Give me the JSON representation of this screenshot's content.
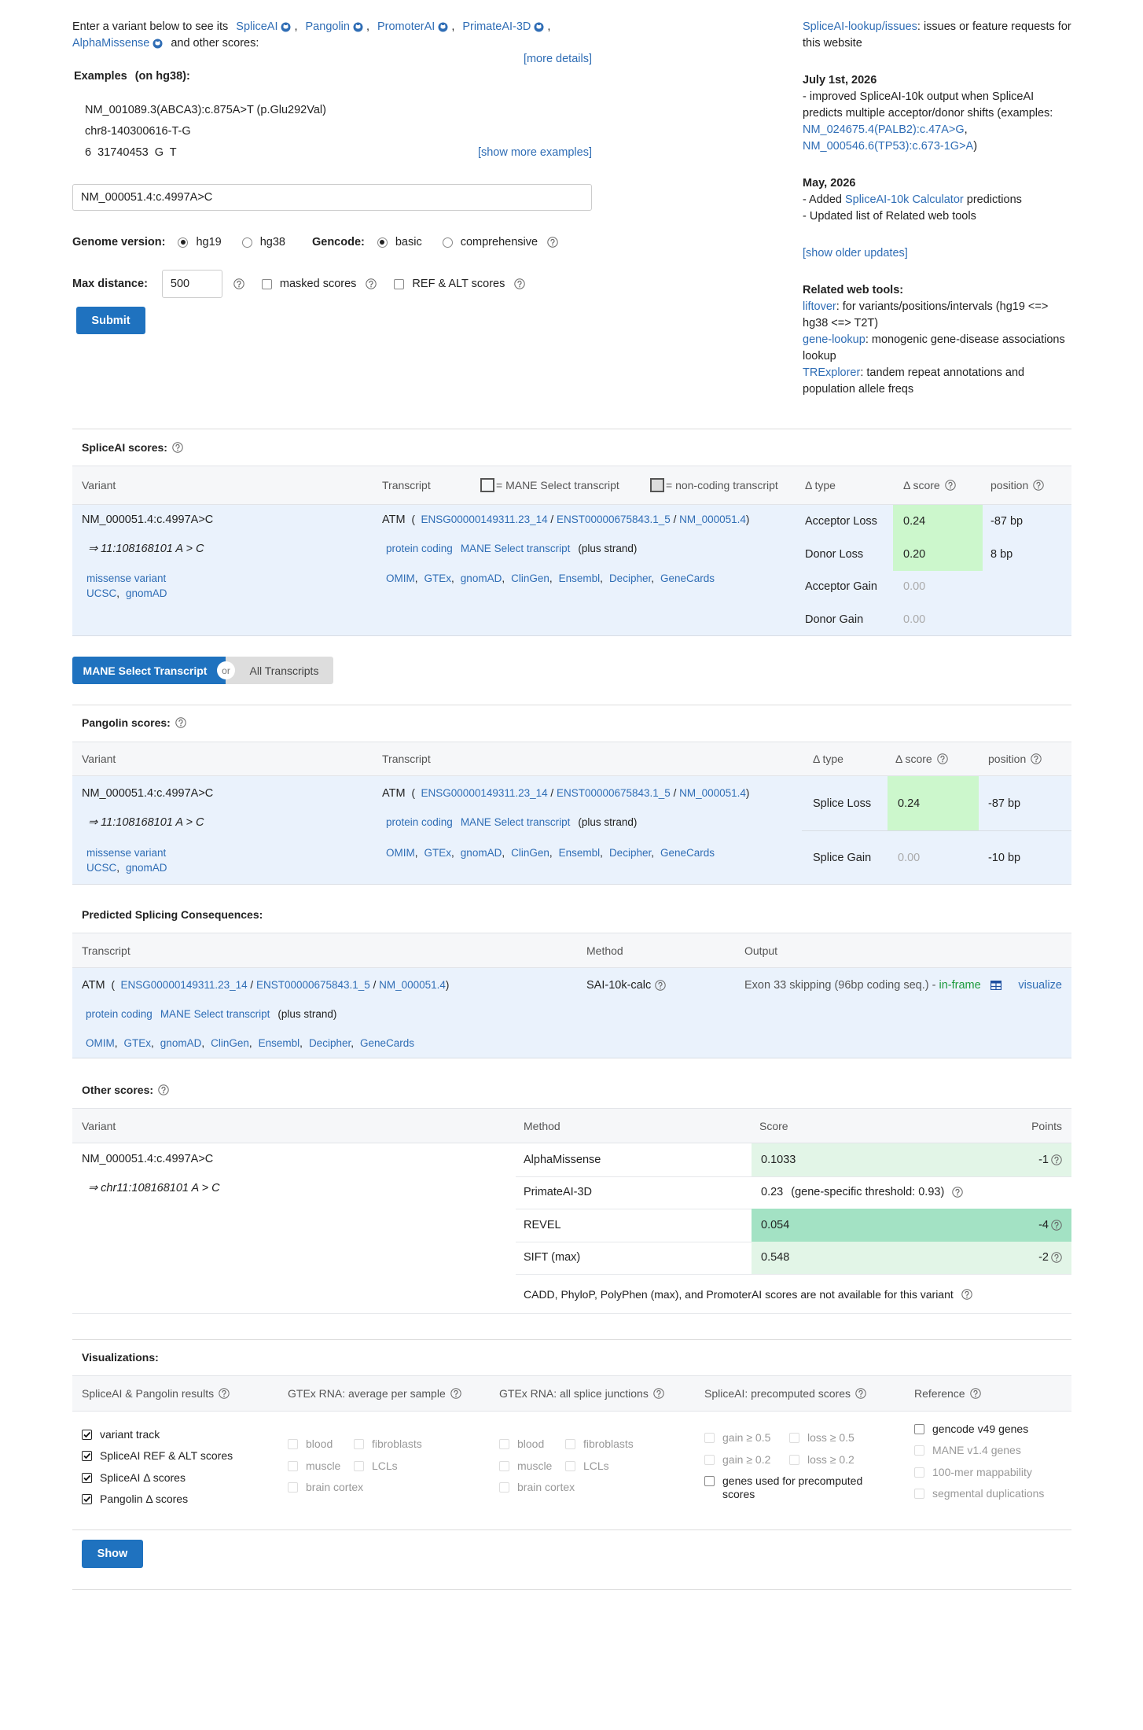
{
  "intro": {
    "lead": "Enter a variant below to see its",
    "tools": [
      "SpliceAI",
      "Pangolin",
      "PromoterAI",
      "PrimateAI-3D",
      "AlphaMissense"
    ],
    "sep": ",",
    "tail": "and other scores:",
    "more_details": "[more details]"
  },
  "examples": {
    "title": "Examples",
    "note": "(on hg38):",
    "items": [
      "NM_001089.3(ABCA3):c.875A>T (p.Glu292Val)",
      "chr8-140300616-T-G",
      "6  31740453  G  T"
    ],
    "show_more": "[show more examples]"
  },
  "form": {
    "variant": "NM_000051.4:c.4997A>C",
    "genome": {
      "label": "Genome version:",
      "options": [
        {
          "label": "hg19",
          "selected": true
        },
        {
          "label": "hg38",
          "selected": false
        }
      ]
    },
    "gencode": {
      "label": "Gencode:",
      "options": [
        {
          "label": "basic",
          "selected": true
        },
        {
          "label": "comprehensive",
          "selected": false
        }
      ]
    },
    "max_distance": {
      "label": "Max distance:",
      "value": "500"
    },
    "masked_scores": {
      "label": "masked scores",
      "checked": false
    },
    "ref_alt_scores": {
      "label": "REF & ALT scores",
      "checked": false
    },
    "submit": "Submit"
  },
  "sidebar": {
    "issues": [
      {
        "link": "SpliceAI-lookup/issues"
      },
      {
        "text": ": issues or feature requests for this website"
      }
    ],
    "updates": [
      {
        "date": "July 1st, 2026",
        "lines": [
          [
            {
              "text": "- improved SpliceAI-10k output when SpliceAI predicts multiple acceptor/donor shifts (examples: "
            },
            {
              "link": "NM_024675.4(PALB2):c.47A>G"
            },
            {
              "text": ", "
            },
            {
              "link": "NM_000546.6(TP53):c.673-1G>A"
            },
            {
              "text": ")"
            }
          ]
        ]
      },
      {
        "date": "May, 2026",
        "lines": [
          [
            {
              "text": "- Added "
            },
            {
              "link": "SpliceAI-10k Calculator"
            },
            {
              "text": " predictions"
            }
          ],
          [
            {
              "text": "- Updated list of Related web tools"
            }
          ]
        ]
      }
    ],
    "show_older": "[show older updates]",
    "related_title": "Related web tools:",
    "related": [
      [
        {
          "link": "liftover"
        },
        {
          "text": ": for variants/positions/intervals (hg19 <=> hg38 <=> T2T)"
        }
      ],
      [
        {
          "link": "gene-lookup"
        },
        {
          "text": ": monogenic gene-disease associations lookup"
        }
      ],
      [
        {
          "link": "TRExplorer"
        },
        {
          "text": ": tandem repeat annotations and population allele freqs"
        }
      ]
    ]
  },
  "spliceai": {
    "title": "SpliceAI scores:",
    "headers": {
      "variant": "Variant",
      "transcript": "Transcript",
      "mane_legend": "= MANE Select transcript",
      "noncoding_legend": "= non-coding transcript",
      "type": "Δ type",
      "score": "Δ score",
      "position": "position"
    },
    "variant": {
      "name": "NM_000051.4:c.4997A>C",
      "coords": "⇒ 11:108168101 A > C",
      "consequence": "missense variant",
      "links": [
        "UCSC",
        "gnomAD"
      ],
      "sep": ","
    },
    "transcript": {
      "gene": "ATM",
      "ids": [
        {
          "text": "(  "
        },
        {
          "link": "ENSG00000149311.23_14"
        },
        {
          "text": " / "
        },
        {
          "link": "ENST00000675843.1_5"
        },
        {
          "text": " / "
        },
        {
          "link": "NM_000051.4"
        },
        {
          "text": ")"
        }
      ],
      "tags": [
        "protein coding",
        "MANE Select transcript"
      ],
      "strand": "(plus strand)",
      "links": [
        "OMIM",
        "GTEx",
        "gnomAD",
        "ClinGen",
        "Ensembl",
        "Decipher",
        "GeneCards"
      ],
      "sep": ","
    },
    "rows": [
      {
        "type": "Acceptor Loss",
        "score": "0.24",
        "position": "-87 bp",
        "color": "#ccf7cc"
      },
      {
        "type": "Donor Loss",
        "score": "0.20",
        "position": "8 bp",
        "color": "#ccf7cc"
      },
      {
        "type": "Acceptor Gain",
        "score": "0.00"
      },
      {
        "type": "Donor Gain",
        "score": "0.00"
      }
    ]
  },
  "toggle": {
    "selected": "MANE Select Transcript",
    "or": "or",
    "other": "All Transcripts"
  },
  "pangolin": {
    "title": "Pangolin scores:",
    "headers": {
      "variant": "Variant",
      "transcript": "Transcript",
      "type": "Δ type",
      "score": "Δ score",
      "position": "position"
    },
    "variant": {
      "name": "NM_000051.4:c.4997A>C",
      "coords": "⇒ 11:108168101 A > C",
      "consequence": "missense variant",
      "links": [
        "UCSC",
        "gnomAD"
      ],
      "sep": ","
    },
    "transcript": {
      "gene": "ATM",
      "ids": [
        {
          "text": "(  "
        },
        {
          "link": "ENSG00000149311.23_14"
        },
        {
          "text": " / "
        },
        {
          "link": "ENST00000675843.1_5"
        },
        {
          "text": " / "
        },
        {
          "link": "NM_000051.4"
        },
        {
          "text": ")"
        }
      ],
      "tags": [
        "protein coding",
        "MANE Select transcript"
      ],
      "strand": "(plus strand)",
      "links": [
        "OMIM",
        "GTEx",
        "gnomAD",
        "ClinGen",
        "Ensembl",
        "Decipher",
        "GeneCards"
      ],
      "sep": ","
    },
    "rows": [
      {
        "type": "Splice Loss",
        "score": "0.24",
        "position": "-87 bp",
        "color": "#ccf7cc"
      },
      {
        "type": "Splice Gain",
        "score": "0.00",
        "position": "-10 bp"
      }
    ]
  },
  "consequences": {
    "title": "Predicted Splicing Consequences:",
    "headers": {
      "transcript": "Transcript",
      "method": "Method",
      "output": "Output"
    },
    "transcript": {
      "gene": "ATM",
      "ids": [
        {
          "text": "(  "
        },
        {
          "link": "ENSG00000149311.23_14"
        },
        {
          "text": " / "
        },
        {
          "link": "ENST00000675843.1_5"
        },
        {
          "text": " / "
        },
        {
          "link": "NM_000051.4"
        },
        {
          "text": ")"
        }
      ],
      "tags": [
        "protein coding",
        "MANE Select transcript"
      ],
      "strand": "(plus strand)",
      "links": [
        "OMIM",
        "GTEx",
        "gnomAD",
        "ClinGen",
        "Ensembl",
        "Decipher",
        "GeneCards"
      ],
      "sep": ","
    },
    "method": "SAI-10k-calc",
    "output": [
      {
        "text": "Exon 33 skipping (96bp coding seq.) - "
      },
      {
        "highlight": "in-frame"
      }
    ],
    "visualize": "visualize"
  },
  "other": {
    "title": "Other scores:",
    "headers": {
      "variant": "Variant",
      "method": "Method",
      "score": "Score",
      "points": "Points"
    },
    "variant": {
      "name": "NM_000051.4:c.4997A>C",
      "coords": "⇒ chr11:108168101 A > C"
    },
    "rows": [
      {
        "method": "AlphaMissense",
        "score": "0.1033",
        "points": "-1",
        "color": "#e2f5e7"
      },
      {
        "method": "PrimateAI-3D",
        "score": "0.23",
        "detail": "(gene-specific threshold: 0.93)"
      },
      {
        "method": "REVEL",
        "score": "0.054",
        "points": "-4",
        "color": "#a3e2c4"
      },
      {
        "method": "SIFT (max)",
        "score": "0.548",
        "points": "-2",
        "color": "#e2f5e7"
      }
    ],
    "note": "CADD, PhyloP, PolyPhen (max), and PromoterAI scores are not available for this variant"
  },
  "visualizations": {
    "title": "Visualizations:",
    "columns": [
      {
        "header": "SpliceAI & Pangolin results",
        "options": [
          {
            "label": "variant track",
            "checked": true,
            "disabled": false
          },
          {
            "label": "SpliceAI REF & ALT scores",
            "checked": true,
            "disabled": false
          },
          {
            "label": "SpliceAI Δ scores",
            "checked": true,
            "disabled": false
          },
          {
            "label": "Pangolin Δ scores",
            "checked": true,
            "disabled": false
          }
        ]
      },
      {
        "header": "GTEx RNA: average per sample",
        "options": [
          {
            "label": "blood",
            "checked": false,
            "disabled": true
          },
          {
            "label": "fibroblasts",
            "checked": false,
            "disabled": true
          },
          {
            "label": "muscle",
            "checked": false,
            "disabled": true
          },
          {
            "label": "LCLs",
            "checked": false,
            "disabled": true
          },
          {
            "label": "brain cortex",
            "checked": false,
            "disabled": true
          }
        ]
      },
      {
        "header": "GTEx RNA: all splice junctions",
        "options": [
          {
            "label": "blood",
            "checked": false,
            "disabled": true
          },
          {
            "label": "fibroblasts",
            "checked": false,
            "disabled": true
          },
          {
            "label": "muscle",
            "checked": false,
            "disabled": true
          },
          {
            "label": "LCLs",
            "checked": false,
            "disabled": true
          },
          {
            "label": "brain cortex",
            "checked": false,
            "disabled": true
          }
        ]
      },
      {
        "header": "SpliceAI: precomputed scores",
        "options": [
          {
            "label": "gain ≥ 0.5",
            "checked": false,
            "disabled": true
          },
          {
            "label": "loss ≥ 0.5",
            "checked": false,
            "disabled": true
          },
          {
            "label": "gain ≥ 0.2",
            "checked": false,
            "disabled": true
          },
          {
            "label": "loss ≥ 0.2",
            "checked": false,
            "disabled": true
          },
          {
            "label": "genes used for precomputed scores",
            "checked": false,
            "disabled": false
          }
        ]
      },
      {
        "header": "Reference",
        "options": [
          {
            "label": "gencode v49 genes",
            "checked": false,
            "disabled": false
          },
          {
            "label": "MANE v1.4 genes",
            "checked": false,
            "disabled": true
          },
          {
            "label": "100-mer mappability",
            "checked": false,
            "disabled": true
          },
          {
            "label": "segmental duplications",
            "checked": false,
            "disabled": true
          }
        ]
      }
    ],
    "show": "Show"
  }
}
